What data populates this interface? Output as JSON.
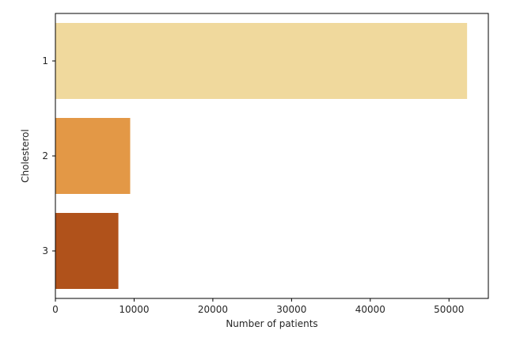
{
  "chart_data": {
    "type": "bar",
    "orientation": "horizontal",
    "title": "",
    "xlabel": "Number of patients",
    "ylabel": "Cholesterol",
    "categories": [
      "1",
      "2",
      "3"
    ],
    "values": [
      52300,
      9500,
      8000
    ],
    "colors": [
      "#f0d99d",
      "#e39846",
      "#b0521b"
    ],
    "xlim": [
      0,
      55000
    ],
    "xticks": [
      0,
      10000,
      20000,
      30000,
      40000,
      50000
    ],
    "xtick_labels": [
      "0",
      "10000",
      "20000",
      "30000",
      "40000",
      "50000"
    ],
    "grid": false,
    "legend": "none"
  }
}
